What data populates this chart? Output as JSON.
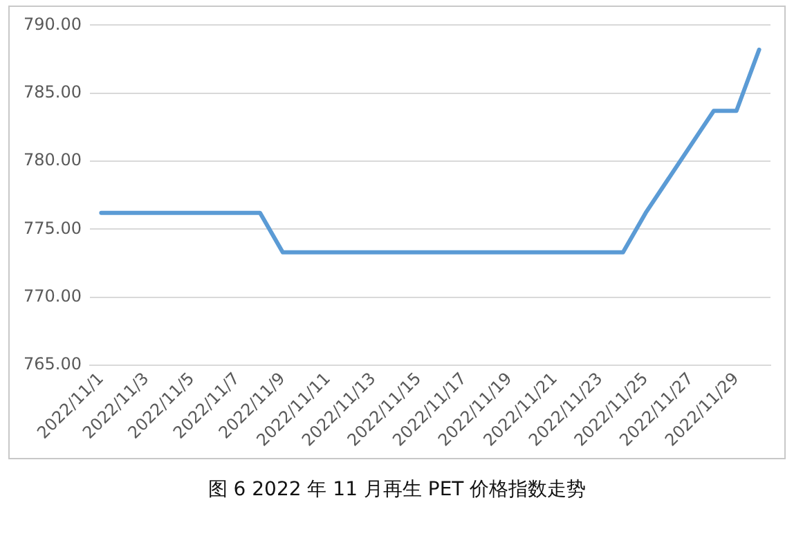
{
  "chart_data": {
    "type": "line",
    "title": "图 6  2022 年 11 月再生 PET 价格指数走势",
    "categories": [
      "2022/11/1",
      null,
      "2022/11/3",
      null,
      "2022/11/5",
      null,
      "2022/11/7",
      null,
      "2022/11/9",
      null,
      "2022/11/11",
      null,
      "2022/11/13",
      null,
      "2022/11/15",
      null,
      "2022/11/17",
      null,
      "2022/11/19",
      null,
      "2022/11/21",
      null,
      "2022/11/23",
      null,
      "2022/11/25",
      null,
      "2022/11/27",
      null,
      "2022/11/29",
      null
    ],
    "series": [
      {
        "color": "#5b9bd5",
        "values": [
          776.2,
          776.2,
          776.2,
          776.2,
          776.2,
          776.2,
          776.2,
          776.2,
          773.3,
          773.3,
          773.3,
          773.3,
          773.3,
          773.3,
          773.3,
          773.3,
          773.3,
          773.3,
          773.3,
          773.3,
          773.3,
          773.3,
          773.3,
          773.3,
          776.2,
          778.7,
          781.2,
          783.7,
          783.7,
          788.2
        ]
      }
    ],
    "ylim": [
      765,
      790
    ],
    "yticks": [
      {
        "value": 765,
        "label": "765.00"
      },
      {
        "value": 770,
        "label": "770.00"
      },
      {
        "value": 775,
        "label": "775.00"
      },
      {
        "value": 780,
        "label": "780.00"
      },
      {
        "value": 785,
        "label": "785.00"
      },
      {
        "value": 790,
        "label": "790.00"
      }
    ],
    "grid": "y",
    "legend": false,
    "marker": "none",
    "line_style": "solid"
  }
}
